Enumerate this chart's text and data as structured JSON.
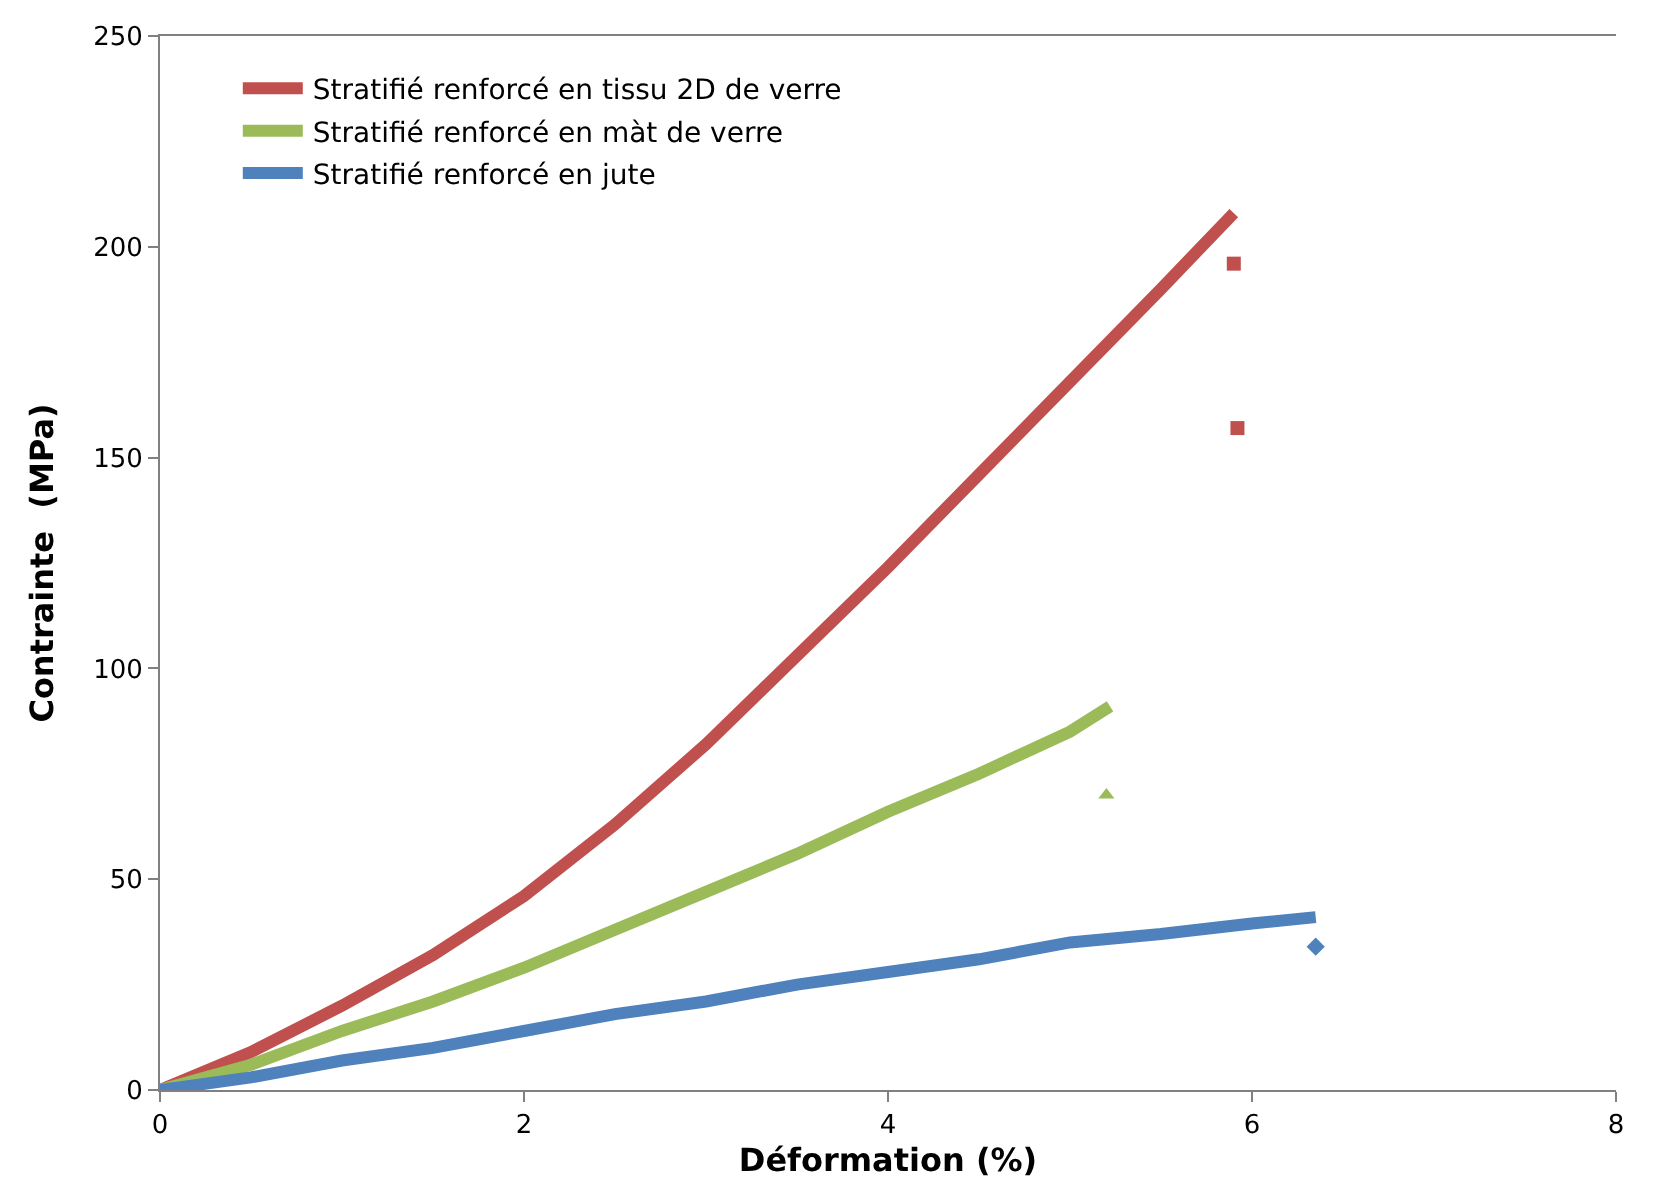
{
  "chart_data": {
    "type": "line",
    "xlabel": "Déformation (%)",
    "ylabel": "Contrainte  (MPa)",
    "xlim": [
      0,
      8
    ],
    "xticks": [
      0,
      2,
      4,
      6,
      8
    ],
    "ylim": [
      0,
      250
    ],
    "yticks": [
      0,
      50,
      100,
      150,
      200,
      250
    ],
    "legend": "top left",
    "marker": "none",
    "series": [
      {
        "name": "Stratifié renforcé en tissu 2D de verre",
        "color": "#c0504d",
        "x": [
          0,
          0.5,
          1,
          1.5,
          2,
          2.5,
          3,
          3.5,
          4,
          4.5,
          5,
          5.5,
          5.9
        ],
        "values": [
          0,
          9,
          20,
          32,
          46,
          63,
          82,
          103,
          124,
          146,
          168,
          190,
          208
        ]
      },
      {
        "name": "Stratifié renforcé en màt de verre",
        "color": "#9bbb59",
        "x": [
          0,
          0.5,
          1,
          1.5,
          2,
          2.5,
          3,
          3.5,
          4,
          4.5,
          5,
          5.22
        ],
        "values": [
          0,
          6,
          14,
          21,
          29,
          38,
          47,
          56,
          66,
          75,
          85,
          91
        ]
      },
      {
        "name": "Stratifié renforcé en jute",
        "color": "#4f81bd",
        "x": [
          0,
          0.5,
          1,
          1.5,
          2,
          2.5,
          3,
          3.5,
          4,
          4.5,
          5,
          5.5,
          6,
          6.35
        ],
        "values": [
          0,
          3,
          7,
          10,
          14,
          18,
          21,
          25,
          28,
          31,
          35,
          37,
          39.5,
          41
        ]
      },
      {
        "color": "#c0504d",
        "type": "scatter",
        "marker": "square",
        "x": [
          5.9,
          5.92
        ],
        "values": [
          196,
          157
        ]
      },
      {
        "color": "#9bbb59",
        "type": "scatter",
        "marker": "triangle",
        "x": [
          5.2
        ],
        "values": [
          70
        ]
      },
      {
        "color": "#4f81bd",
        "type": "scatter",
        "marker": "diamond",
        "x": [
          6.35
        ],
        "values": [
          34
        ]
      }
    ]
  }
}
